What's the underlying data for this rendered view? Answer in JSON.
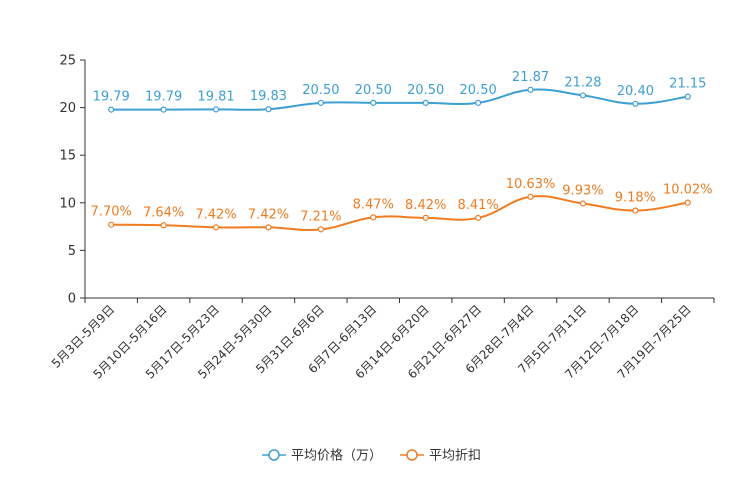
{
  "chart_data": {
    "type": "line",
    "title": "",
    "xlabel": "",
    "ylabel": "",
    "ylim": [
      0,
      25
    ],
    "yticks": [
      0,
      5,
      10,
      15,
      20,
      25
    ],
    "categories": [
      "5月3日-5月9日",
      "5月10日-5月16日",
      "5月17日-5月23日",
      "5月24日-5月30日",
      "5月31日-6月6日",
      "6月7日-6月13日",
      "6月14日-6月20日",
      "6月21日-6月27日",
      "6月28日-7月4日",
      "7月5日-7月11日",
      "7月12日-7月18日",
      "7月19日-7月25日"
    ],
    "series": [
      {
        "name": "平均价格（万）",
        "color": "#3d9fd3",
        "values": [
          19.79,
          19.79,
          19.81,
          19.83,
          20.5,
          20.5,
          20.5,
          20.5,
          21.87,
          21.28,
          20.4,
          21.15
        ],
        "labels": [
          "19.79",
          "19.79",
          "19.81",
          "19.83",
          "20.50",
          "20.50",
          "20.50",
          "20.50",
          "21.87",
          "21.28",
          "20.40",
          "21.15"
        ]
      },
      {
        "name": "平均折扣",
        "color": "#f07c22",
        "values": [
          7.7,
          7.64,
          7.42,
          7.42,
          7.21,
          8.47,
          8.42,
          8.41,
          10.63,
          9.93,
          9.18,
          10.02
        ],
        "labels": [
          "7.70%",
          "7.64%",
          "7.42%",
          "7.42%",
          "7.21%",
          "8.47%",
          "8.42%",
          "8.41%",
          "10.63%",
          "9.93%",
          "9.18%",
          "10.02%"
        ]
      }
    ],
    "legend_position": "bottom"
  }
}
